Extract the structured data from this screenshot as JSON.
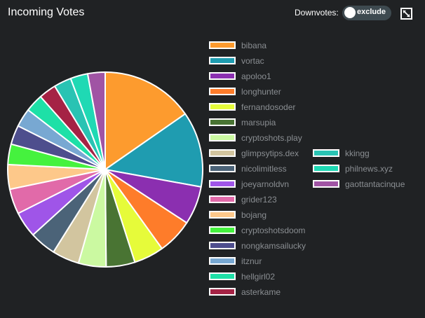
{
  "header": {
    "title": "Incoming Votes",
    "downvotes_label": "Downvotes:",
    "toggle_label": "exclude",
    "expand_icon": "expand-icon"
  },
  "chart_data": {
    "type": "pie",
    "title": "Incoming Votes",
    "slices": [
      {
        "label": "bibana",
        "value": 15.4,
        "color": "#fd9b2e"
      },
      {
        "label": "vortac",
        "value": 12.6,
        "color": "#1f9cb0"
      },
      {
        "label": "apoloo1",
        "value": 6.4,
        "color": "#8b2fb0"
      },
      {
        "label": "longhunter",
        "value": 5.9,
        "color": "#fe7c2a"
      },
      {
        "label": "fernandosoder",
        "value": 5.0,
        "color": "#e6fb3a"
      },
      {
        "label": "marsupia",
        "value": 4.8,
        "color": "#497433"
      },
      {
        "label": "cryptoshots.play",
        "value": 4.6,
        "color": "#cbf9a1"
      },
      {
        "label": "glimpsytips.dex",
        "value": 4.5,
        "color": "#d2c59f"
      },
      {
        "label": "nicolimitless",
        "value": 4.4,
        "color": "#4b6378"
      },
      {
        "label": "joeyarnoldvn",
        "value": 4.3,
        "color": "#9f55e8"
      },
      {
        "label": "grider123",
        "value": 4.2,
        "color": "#e16aa9"
      },
      {
        "label": "bojang",
        "value": 4.1,
        "color": "#fdc88a"
      },
      {
        "label": "cryptoshotsdoom",
        "value": 3.4,
        "color": "#45f23e"
      },
      {
        "label": "nongkamsailucky",
        "value": 3.2,
        "color": "#4e4e8d"
      },
      {
        "label": "itznur",
        "value": 3.1,
        "color": "#78a8d2"
      },
      {
        "label": "hellgirl02",
        "value": 3.0,
        "color": "#1ee0a7"
      },
      {
        "label": "asterkame",
        "value": 2.9,
        "color": "#a52345"
      },
      {
        "label": "kkingg",
        "value": 2.9,
        "color": "#29c3b3"
      },
      {
        "label": "philnews.xyz",
        "value": 2.9,
        "color": "#1fd9b4"
      },
      {
        "label": "gaottantacinque",
        "value": 2.9,
        "color": "#a054a4"
      }
    ],
    "legend_position": "right",
    "legend_columns": [
      17,
      3
    ]
  }
}
